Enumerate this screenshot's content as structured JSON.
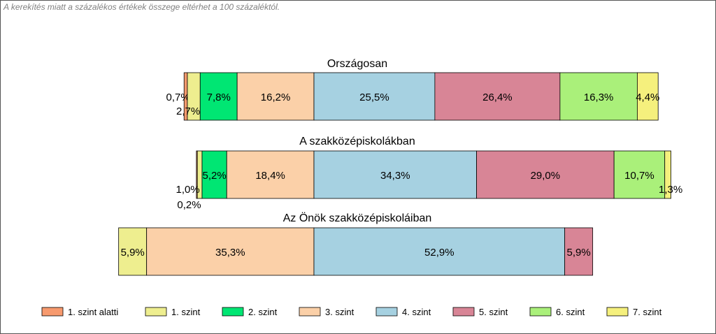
{
  "note": "A kerekítés miatt a  százalékos értékek összege eltérhet a 100 százaléktól.",
  "chart_data": {
    "type": "bar",
    "orientation": "horizontal",
    "stacked": "100%",
    "categories": [
      "1. szint alatti",
      "1. szint",
      "2. szint",
      "3. szint",
      "4. szint",
      "5. szint",
      "6. szint",
      "7. szint"
    ],
    "colors": [
      "#f79a6e",
      "#eeee8f",
      "#00e673",
      "#fbd0a8",
      "#a6d1e1",
      "#d88596",
      "#aaf07a",
      "#f5f07d"
    ],
    "legend_position": "bottom",
    "groups": [
      {
        "title": "Országosan",
        "values": [
          0.7,
          2.7,
          7.8,
          16.2,
          25.5,
          26.4,
          16.3,
          4.4
        ],
        "labels": [
          "0,7%",
          "2,7%",
          "7,8%",
          "16,2%",
          "25,5%",
          "26,4%",
          "16,3%",
          "4,4%"
        ]
      },
      {
        "title": "A szakközépiskolákban",
        "values": [
          0.2,
          1.0,
          5.2,
          18.4,
          34.3,
          29.0,
          10.7,
          1.3
        ],
        "labels": [
          "0,2%",
          "1,0%",
          "5,2%",
          "18,4%",
          "34,3%",
          "29,0%",
          "10,7%",
          "1,3%"
        ]
      },
      {
        "title": "Az Önök szakközépiskoláiban",
        "values": [
          0,
          5.9,
          0,
          35.3,
          52.9,
          5.9,
          0,
          0
        ],
        "labels": [
          "",
          "5,9%",
          "",
          "35,3%",
          "52,9%",
          "5,9%",
          "",
          ""
        ]
      }
    ]
  }
}
